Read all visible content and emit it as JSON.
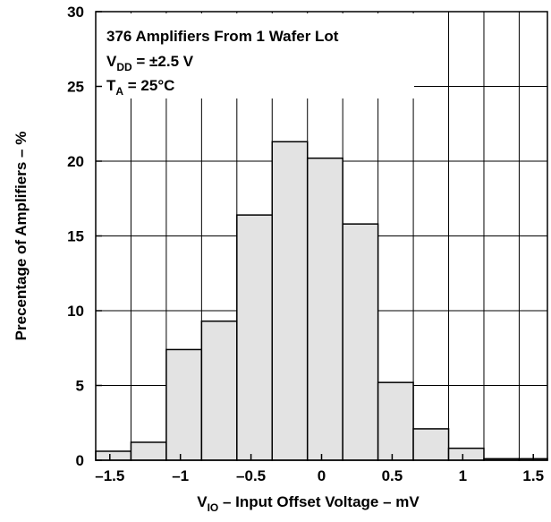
{
  "chart_data": {
    "type": "bar",
    "xlabel": {
      "main": "V",
      "sub": "IO",
      "rest": " – Input Offset Voltage – mV"
    },
    "ylabel": "Precentage of Amplifiers – %",
    "xlim": [
      -1.6,
      1.6
    ],
    "ylim": [
      0,
      30
    ],
    "grid": true,
    "x_ticks": [
      -1.5,
      -1,
      -0.5,
      0,
      0.5,
      1,
      1.5
    ],
    "x_tick_labels": [
      "–1.5",
      "–1",
      "–0.5",
      "0",
      "0.5",
      "1",
      "1.5"
    ],
    "y_ticks": [
      0,
      5,
      10,
      15,
      20,
      25,
      30
    ],
    "y_tick_labels": [
      "0",
      "5",
      "10",
      "15",
      "20",
      "25",
      "30"
    ],
    "bin_edges": [
      -1.6,
      -1.35,
      -1.1,
      -0.85,
      -0.6,
      -0.35,
      -0.1,
      0.15,
      0.4,
      0.65,
      0.9,
      1.15,
      1.4,
      1.6
    ],
    "values": [
      0.6,
      1.2,
      7.4,
      9.3,
      16.4,
      21.3,
      20.2,
      15.8,
      5.2,
      2.1,
      0.8,
      0.1,
      0.1
    ],
    "annotations": {
      "line1": "376 Amplifiers From 1 Wafer Lot",
      "line2": {
        "main": "V",
        "sub": "DD",
        "rest": " = ±2.5 V"
      },
      "line3": {
        "main": "T",
        "sub": "A",
        "rest": " = 25°C"
      }
    },
    "colors": {
      "bar_fill": "#e3e3e3",
      "bar_stroke": "#000000",
      "grid": "#000000"
    }
  }
}
